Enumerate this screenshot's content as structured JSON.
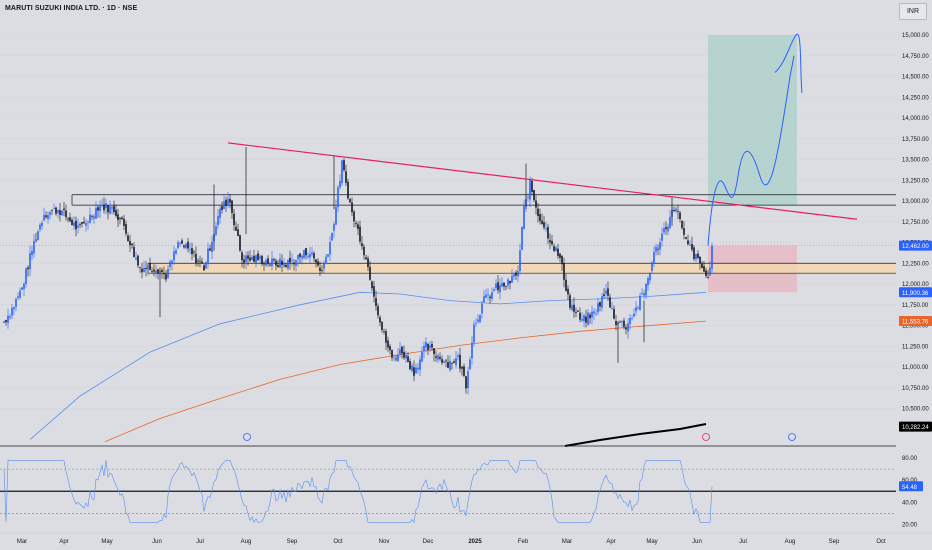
{
  "header": {
    "title": "MARUTI SUZUKI INDIA LTD. · 1D · NSE",
    "currency": "INR"
  },
  "chart_data": [
    {
      "type": "candlestick",
      "title": "MARUTI SUZUKI INDIA LTD. · 1D · NSE",
      "ylim": [
        10100,
        15100
      ],
      "y_ticks": [
        "10,500.00",
        "10,750.00",
        "11,000.00",
        "11,250.00",
        "11,500.00",
        "11,750.00",
        "12,000.00",
        "12,250.00",
        "12,500.00",
        "12,750.00",
        "13,000.00",
        "13,250.00",
        "13,500.00",
        "13,750.00",
        "14,000.00",
        "14,250.00",
        "14,500.00",
        "14,750.00",
        "15,000.00"
      ],
      "x_ticks": [
        "Mar",
        "Apr",
        "May",
        "Jun",
        "Jul",
        "Aug",
        "Sep",
        "Oct",
        "Nov",
        "Dec",
        "2025",
        "Feb",
        "Mar",
        "Apr",
        "May",
        "Jun",
        "Jul",
        "Aug",
        "Sep",
        "Oct"
      ],
      "colors": {
        "up": "#2962ff",
        "down": "#131722",
        "trendline": "#e91e63",
        "ma_blue": "#5b8def",
        "ma_orange": "#e8642c",
        "ma_black": "#000000",
        "zone_fill": "#f3d7b0",
        "target_fill": "#a9cfc8",
        "stop_fill": "#e7b6c1"
      },
      "price_labels": [
        {
          "value": 12462.0,
          "text": "12,462.00",
          "color": "#2962ff"
        },
        {
          "value": 11900.36,
          "text": "11,900.36",
          "color": "#2962ff"
        },
        {
          "value": 11553.76,
          "text": "11,553.76",
          "color": "#e8642c"
        },
        {
          "value": 10282.24,
          "text": "10,282.24",
          "color": "#000000"
        }
      ],
      "anchor_close": [
        {
          "d": 0,
          "c": 11550
        },
        {
          "d": 8,
          "c": 11700
        },
        {
          "d": 18,
          "c": 11950
        },
        {
          "d": 30,
          "c": 12500
        },
        {
          "d": 40,
          "c": 12850
        },
        {
          "d": 55,
          "c": 12900
        },
        {
          "d": 75,
          "c": 12650
        },
        {
          "d": 95,
          "c": 12950
        },
        {
          "d": 110,
          "c": 12900
        },
        {
          "d": 120,
          "c": 12700
        },
        {
          "d": 135,
          "c": 12200
        },
        {
          "d": 152,
          "c": 12200
        },
        {
          "d": 162,
          "c": 12100
        },
        {
          "d": 175,
          "c": 12500
        },
        {
          "d": 185,
          "c": 12400
        },
        {
          "d": 200,
          "c": 12200
        },
        {
          "d": 215,
          "c": 12850
        },
        {
          "d": 225,
          "c": 13050
        },
        {
          "d": 238,
          "c": 12300
        },
        {
          "d": 255,
          "c": 12300
        },
        {
          "d": 270,
          "c": 12250
        },
        {
          "d": 285,
          "c": 12250
        },
        {
          "d": 305,
          "c": 12400
        },
        {
          "d": 318,
          "c": 12150
        },
        {
          "d": 328,
          "c": 12600
        },
        {
          "d": 338,
          "c": 13450
        },
        {
          "d": 348,
          "c": 12850
        },
        {
          "d": 358,
          "c": 12500
        },
        {
          "d": 368,
          "c": 12000
        },
        {
          "d": 378,
          "c": 11450
        },
        {
          "d": 388,
          "c": 11100
        },
        {
          "d": 398,
          "c": 11200
        },
        {
          "d": 410,
          "c": 10950
        },
        {
          "d": 422,
          "c": 11250
        },
        {
          "d": 432,
          "c": 11150
        },
        {
          "d": 444,
          "c": 11050
        },
        {
          "d": 454,
          "c": 11100
        },
        {
          "d": 462,
          "c": 10800
        },
        {
          "d": 470,
          "c": 11500
        },
        {
          "d": 480,
          "c": 11800
        },
        {
          "d": 492,
          "c": 11950
        },
        {
          "d": 504,
          "c": 12000
        },
        {
          "d": 514,
          "c": 12150
        },
        {
          "d": 520,
          "c": 12900
        },
        {
          "d": 526,
          "c": 13200
        },
        {
          "d": 534,
          "c": 12850
        },
        {
          "d": 544,
          "c": 12600
        },
        {
          "d": 556,
          "c": 12300
        },
        {
          "d": 566,
          "c": 11750
        },
        {
          "d": 578,
          "c": 11550
        },
        {
          "d": 590,
          "c": 11650
        },
        {
          "d": 602,
          "c": 11900
        },
        {
          "d": 612,
          "c": 11550
        },
        {
          "d": 622,
          "c": 11500
        },
        {
          "d": 632,
          "c": 11700
        },
        {
          "d": 640,
          "c": 11900
        },
        {
          "d": 650,
          "c": 12350
        },
        {
          "d": 660,
          "c": 12650
        },
        {
          "d": 672,
          "c": 12950
        },
        {
          "d": 680,
          "c": 12550
        },
        {
          "d": 690,
          "c": 12350
        },
        {
          "d": 698,
          "c": 12200
        },
        {
          "d": 704,
          "c": 12050
        },
        {
          "d": 708,
          "c": 12462
        }
      ],
      "rsi": {
        "ylim": [
          15,
          90
        ],
        "y_ticks": [
          "20.00",
          "40.00",
          "60.00",
          "80.00"
        ],
        "last": 54.48,
        "last_text": "54.48",
        "levels": [
          70,
          50,
          30
        ]
      }
    }
  ]
}
